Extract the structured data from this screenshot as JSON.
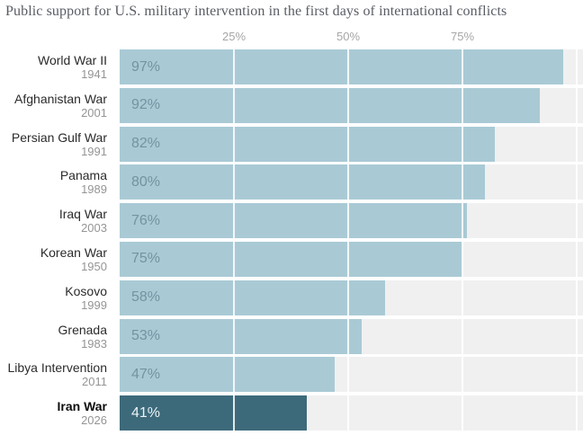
{
  "chart_data": {
    "type": "bar",
    "orientation": "horizontal",
    "title": "Public support for U.S. military intervention in the first days of international conflicts",
    "xlabel": "",
    "ylabel": "",
    "xlim": [
      0,
      100
    ],
    "x_ticks": [
      {
        "value": 25,
        "label": "25%"
      },
      {
        "value": 50,
        "label": "50%"
      },
      {
        "value": 75,
        "label": "75%"
      }
    ],
    "gridline_values": [
      25,
      50,
      75,
      100
    ],
    "legend": "none",
    "rows": [
      {
        "label": "World War II",
        "year": "1941",
        "value": 97,
        "value_label": "97%",
        "highlight": false
      },
      {
        "label": "Afghanistan War",
        "year": "2001",
        "value": 92,
        "value_label": "92%",
        "highlight": false
      },
      {
        "label": "Persian Gulf War",
        "year": "1991",
        "value": 82,
        "value_label": "82%",
        "highlight": false
      },
      {
        "label": "Panama",
        "year": "1989",
        "value": 80,
        "value_label": "80%",
        "highlight": false
      },
      {
        "label": "Iraq War",
        "year": "2003",
        "value": 76,
        "value_label": "76%",
        "highlight": false
      },
      {
        "label": "Korean War",
        "year": "1950",
        "value": 75,
        "value_label": "75%",
        "highlight": false
      },
      {
        "label": "Kosovo",
        "year": "1999",
        "value": 58,
        "value_label": "58%",
        "highlight": false
      },
      {
        "label": "Grenada",
        "year": "1983",
        "value": 53,
        "value_label": "53%",
        "highlight": false
      },
      {
        "label": "Libya Intervention",
        "year": "2011",
        "value": 47,
        "value_label": "47%",
        "highlight": false
      },
      {
        "label": "Iran War",
        "year": "2026",
        "value": 41,
        "value_label": "41%",
        "highlight": true
      }
    ]
  },
  "colors": {
    "bar_light": "#a9cad5",
    "bar_dark": "#3d6a7b",
    "track": "#f0f0f0",
    "value_on_light": "#7592a0",
    "value_on_dark": "#ecf3f6",
    "label": "#2b2b2b",
    "year": "#959595",
    "tick": "#a6a6a6",
    "title": "#585c63",
    "gridline": "#ffffff"
  }
}
